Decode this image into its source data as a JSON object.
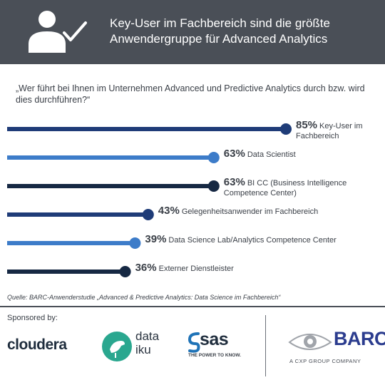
{
  "header": {
    "title_line1": "Key-User im Fachbereich sind die größte",
    "title_line2": "Anwendergruppe für Advanced Analytics",
    "icon": "user-check-icon",
    "background": "#4a4f57"
  },
  "question": "„Wer führt bei Ihnen im Unternehmen Advanced und Predictive Analytics durch bzw. wird dies durchführen?“",
  "chart_data": {
    "type": "bar",
    "orientation": "horizontal",
    "categories": [
      [
        "Key-User im",
        "Fachbereich"
      ],
      [
        "Data Scientist"
      ],
      [
        "BI CC (Business Intelligence",
        "Competence Center)"
      ],
      [
        "Gelegenheitsanwender im Fachbereich"
      ],
      [
        "Data Science Lab/Analytics Competence Center"
      ],
      [
        "Externer Dienstleister"
      ]
    ],
    "values": [
      85,
      63,
      63,
      43,
      39,
      36
    ],
    "value_labels": [
      "85%",
      "63%",
      "63%",
      "43%",
      "39%",
      "36%"
    ],
    "colors": [
      "#1f3c78",
      "#3d7cc9",
      "#162843",
      "#1f3c78",
      "#3d7cc9",
      "#162843"
    ],
    "unit": "%",
    "grid": false,
    "legend": "none"
  },
  "source": "Quelle: BARC-Anwenderstudie „Advanced & Predictive Analytics: Data Science im Fachbereich“",
  "footer": {
    "sponsored_label": "Sponsored by:",
    "logos": {
      "cloudera": "cloudera",
      "dataiku_line1": "data",
      "dataiku_line2": "iku",
      "sas": "sas",
      "sas_tagline": "THE POWER TO KNOW.",
      "barc": "BARC",
      "barc_tagline": "A CXP GROUP COMPANY"
    }
  }
}
